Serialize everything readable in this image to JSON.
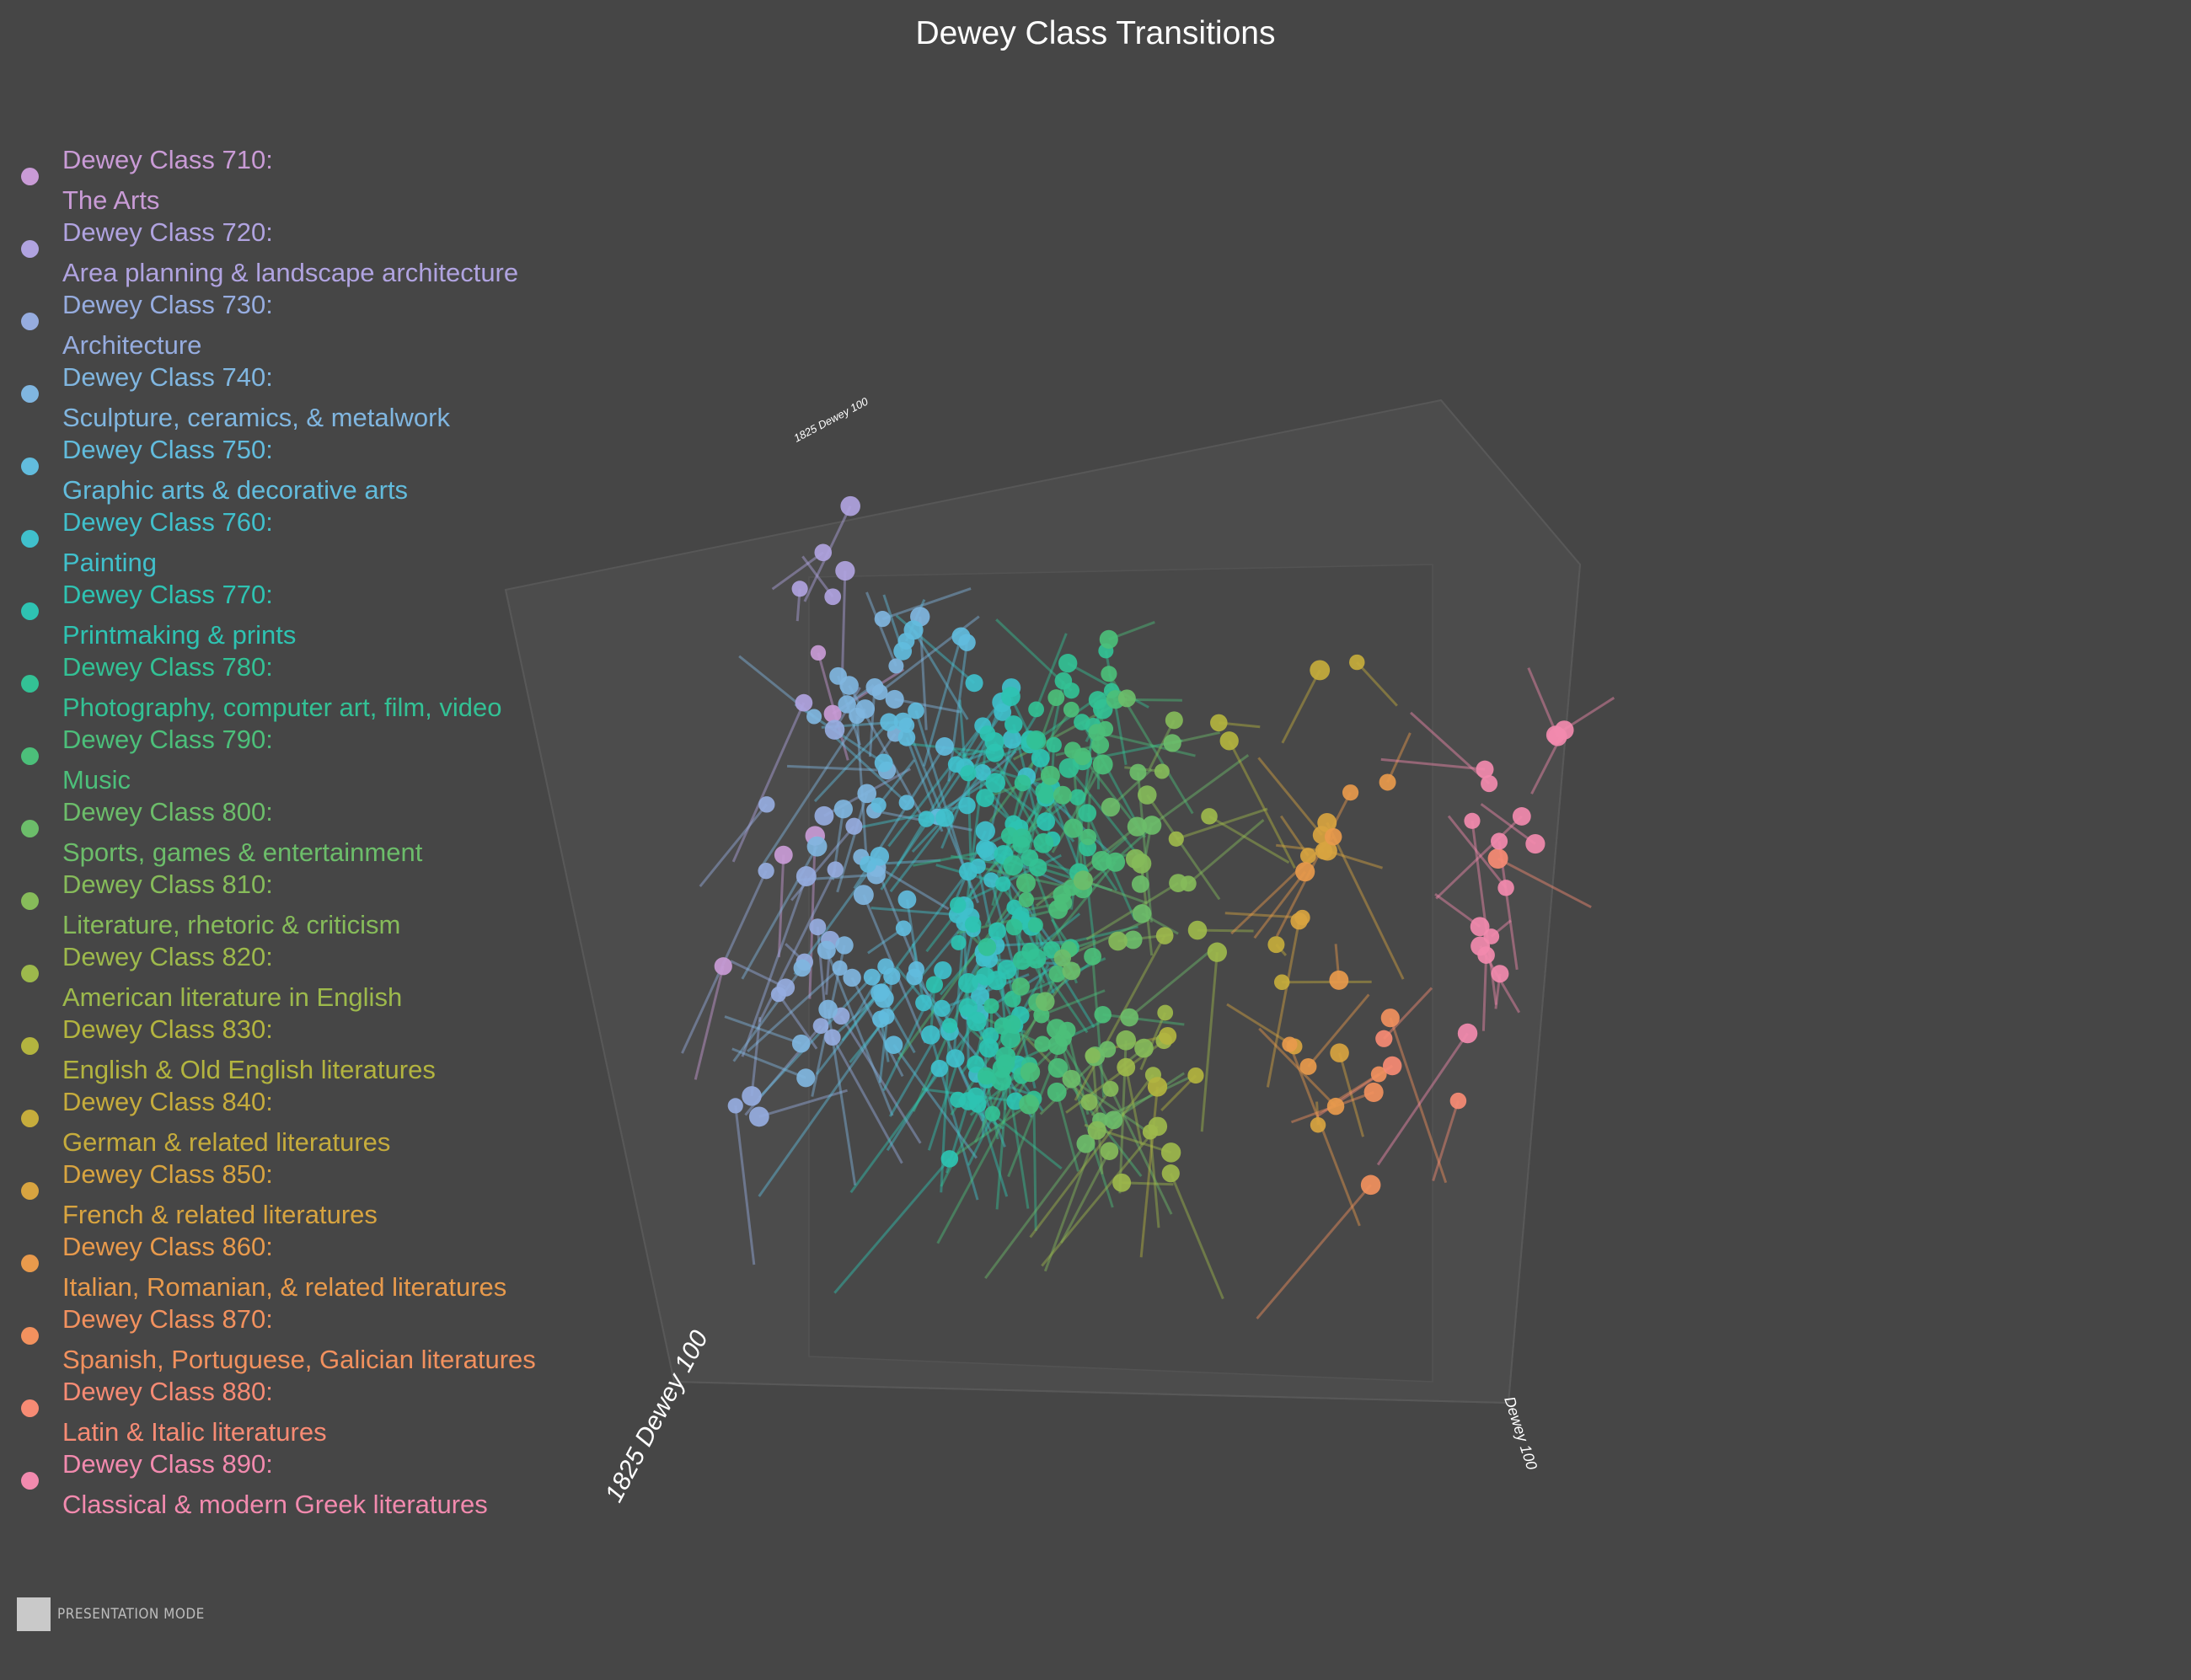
{
  "chart_data": {
    "type": "scatter3d",
    "title": "Dewey Class Transitions",
    "axes": {
      "front_left": "1825 Dewey 100",
      "top": "1825 Dewey 100",
      "right": "Dewey 100"
    },
    "legend_position": "left",
    "series": [
      {
        "name": "Dewey Class 710:",
        "desc": "The Arts",
        "color": "#c99bd6",
        "x": 0.05,
        "y": 0.3,
        "z": 0.6,
        "n": 5
      },
      {
        "name": "Dewey Class 720:",
        "desc": "Area planning & landscape architecture",
        "color": "#b0a3e0",
        "x": 0.07,
        "y": 0.2,
        "z": 0.55,
        "n": 6
      },
      {
        "name": "Dewey Class 730:",
        "desc": "Architecture",
        "color": "#96acdf",
        "x": 0.1,
        "y": 0.45,
        "z": 0.55,
        "n": 18
      },
      {
        "name": "Dewey Class 740:",
        "desc": "Sculpture, ceramics, & metalwork",
        "color": "#80b6e0",
        "x": 0.14,
        "y": 0.4,
        "z": 0.55,
        "n": 30
      },
      {
        "name": "Dewey Class 750:",
        "desc": "Graphic arts & decorative arts",
        "color": "#62bcdd",
        "x": 0.2,
        "y": 0.4,
        "z": 0.55,
        "n": 30
      },
      {
        "name": "Dewey Class 760:",
        "desc": "Painting",
        "color": "#40c0cc",
        "x": 0.28,
        "y": 0.45,
        "z": 0.6,
        "n": 40
      },
      {
        "name": "Dewey Class 770:",
        "desc": "Printmaking & prints",
        "color": "#2ec3b2",
        "x": 0.32,
        "y": 0.5,
        "z": 0.6,
        "n": 50
      },
      {
        "name": "Dewey Class 780:",
        "desc": "Photography, computer art, film, video",
        "color": "#33c195",
        "x": 0.36,
        "y": 0.45,
        "z": 0.6,
        "n": 50
      },
      {
        "name": "Dewey Class 790:",
        "desc": "Music",
        "color": "#4cbf7a",
        "x": 0.4,
        "y": 0.45,
        "z": 0.6,
        "n": 40
      },
      {
        "name": "Dewey Class 800:",
        "desc": "Sports, games & entertainment",
        "color": "#6cbd6a",
        "x": 0.45,
        "y": 0.5,
        "z": 0.55,
        "n": 20
      },
      {
        "name": "Dewey Class 810:",
        "desc": "Literature, rhetoric & criticism",
        "color": "#86bb5a",
        "x": 0.5,
        "y": 0.5,
        "z": 0.55,
        "n": 15
      },
      {
        "name": "Dewey Class 820:",
        "desc": "American literature in English",
        "color": "#9db94c",
        "x": 0.54,
        "y": 0.55,
        "z": 0.55,
        "n": 14
      },
      {
        "name": "Dewey Class 830:",
        "desc": "English & Old English literatures",
        "color": "#b3b43f",
        "x": 0.58,
        "y": 0.45,
        "z": 0.55,
        "n": 5
      },
      {
        "name": "Dewey Class 840:",
        "desc": "German & related literatures",
        "color": "#c6ac3c",
        "x": 0.66,
        "y": 0.3,
        "z": 0.55,
        "n": 4
      },
      {
        "name": "Dewey Class 850:",
        "desc": "French & related literatures",
        "color": "#d8a440",
        "x": 0.7,
        "y": 0.6,
        "z": 0.55,
        "n": 10
      },
      {
        "name": "Dewey Class 860:",
        "desc": "Italian, Romanian, & related literatures",
        "color": "#e89a4c",
        "x": 0.72,
        "y": 0.55,
        "z": 0.55,
        "n": 8
      },
      {
        "name": "Dewey Class 870:",
        "desc": "Spanish, Portuguese, Galician literatures",
        "color": "#f2915e",
        "x": 0.8,
        "y": 0.55,
        "z": 0.55,
        "n": 4
      },
      {
        "name": "Dewey Class 880:",
        "desc": "Latin & Italic literatures",
        "color": "#f78b74",
        "x": 0.85,
        "y": 0.5,
        "z": 0.55,
        "n": 4
      },
      {
        "name": "Dewey Class 890:",
        "desc": "Classical & modern Greek literatures",
        "color": "#f28aae",
        "x": 0.92,
        "y": 0.45,
        "z": 0.55,
        "n": 16
      }
    ]
  },
  "ui": {
    "presentation_mode_label": "PRESENTATION MODE"
  }
}
